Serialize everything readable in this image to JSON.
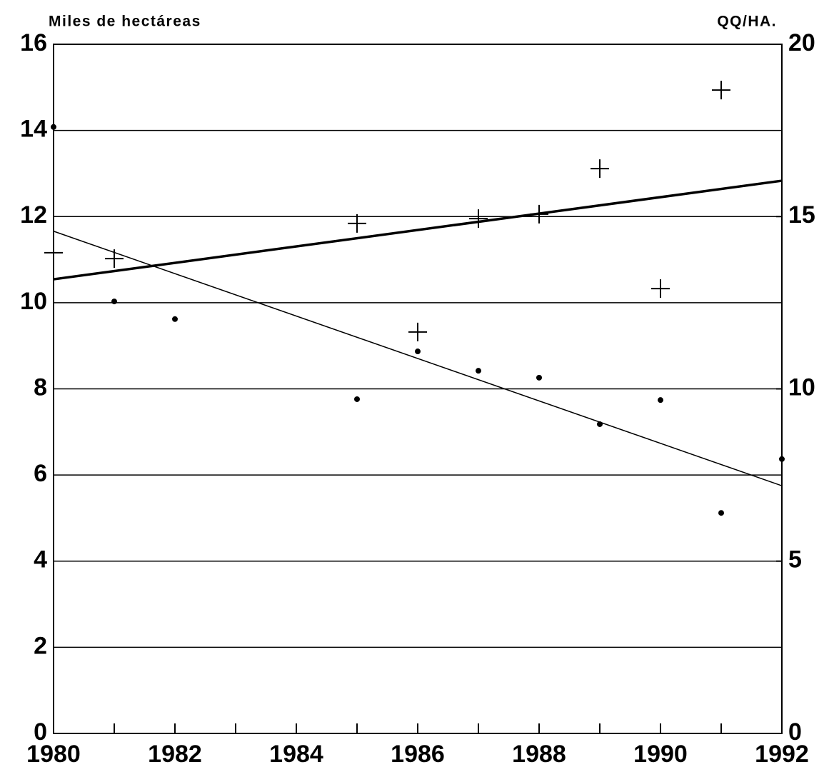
{
  "chart_data": {
    "type": "scatter",
    "y_label": "Miles de hectáreas",
    "y2_label": "QQ/HA.",
    "xlim": [
      1980,
      1992
    ],
    "xticks": [
      1980,
      1982,
      1984,
      1986,
      1988,
      1990,
      1992
    ],
    "xminorticks": [
      1981,
      1983,
      1985,
      1987,
      1989,
      1991
    ],
    "ylim": [
      0,
      16
    ],
    "yticks": [
      0,
      2,
      4,
      6,
      8,
      10,
      12,
      14,
      16
    ],
    "y2lim": [
      0,
      20
    ],
    "y2ticks": [
      0,
      5,
      10,
      15,
      20
    ],
    "grid": true,
    "series": [
      {
        "marker": "dot",
        "color": "#000000",
        "x": [
          1980,
          1981,
          1982,
          1985,
          1986,
          1987,
          1988,
          1989,
          1990,
          1991,
          1992
        ],
        "values": [
          14.08,
          10.03,
          9.62,
          7.76,
          8.87,
          8.42,
          8.26,
          7.18,
          7.74,
          5.12,
          6.37
        ]
      },
      {
        "marker": "plus",
        "color": "#000000",
        "axis": "y2",
        "x": [
          1980,
          1981,
          1985,
          1986,
          1987,
          1988,
          1989,
          1990,
          1991
        ],
        "values": [
          13.95,
          13.78,
          14.8,
          11.65,
          14.94,
          15.07,
          16.39,
          12.91,
          18.67
        ]
      },
      {
        "marker": "line",
        "color": "#000000",
        "width": 1.5,
        "x": [
          1980,
          1992
        ],
        "values": [
          11.66,
          5.75
        ]
      },
      {
        "marker": "line",
        "color": "#000000",
        "width": 3.5,
        "axis": "y2",
        "x": [
          1980,
          1992
        ],
        "values": [
          13.18,
          16.04
        ]
      }
    ]
  }
}
